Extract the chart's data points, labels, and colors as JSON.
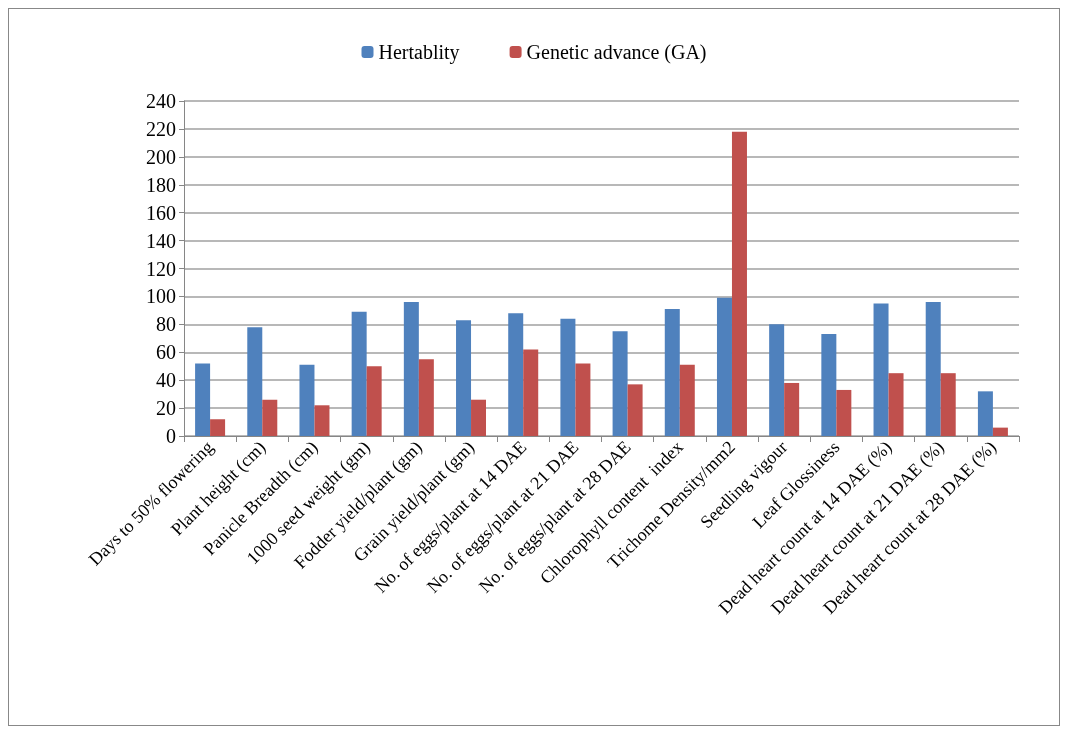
{
  "chart_data": {
    "type": "bar",
    "categories": [
      "Days to 50% flowering",
      "Plant height (cm)",
      "Panicle Breadth (cm)",
      "1000 seed weight (gm)",
      "Fodder yield/plant (gm)",
      "Grain yield/plant (gm)",
      "No. of eggs/plant at 14 DAE",
      "No. of eggs/plant at 21 DAE",
      "No. of eggs/plant at 28 DAE",
      "Chlorophyll content  index",
      "Trichome Density/mm2",
      "Seedling vigour",
      "Leaf Glossiness",
      "Dead heart count at 14 DAE (%)",
      "Dead heart count at 21 DAE (%)",
      "Dead heart count at 28 DAE (%)"
    ],
    "series": [
      {
        "name": "Hertablity",
        "color": "#4f81bd",
        "values": [
          52,
          78,
          51,
          89,
          96,
          83,
          88,
          84,
          75,
          91,
          99,
          80,
          73,
          95,
          96,
          32
        ]
      },
      {
        "name": "Genetic advance (GA)",
        "color": "#c0504d",
        "values": [
          12,
          26,
          22,
          50,
          55,
          26,
          62,
          52,
          37,
          51,
          218,
          38,
          33,
          45,
          45,
          6
        ]
      }
    ],
    "ylim": [
      0,
      240
    ],
    "yticks": [
      0,
      20,
      40,
      60,
      80,
      100,
      120,
      140,
      160,
      180,
      200,
      220,
      240
    ],
    "grid": "y",
    "legend": "top"
  }
}
